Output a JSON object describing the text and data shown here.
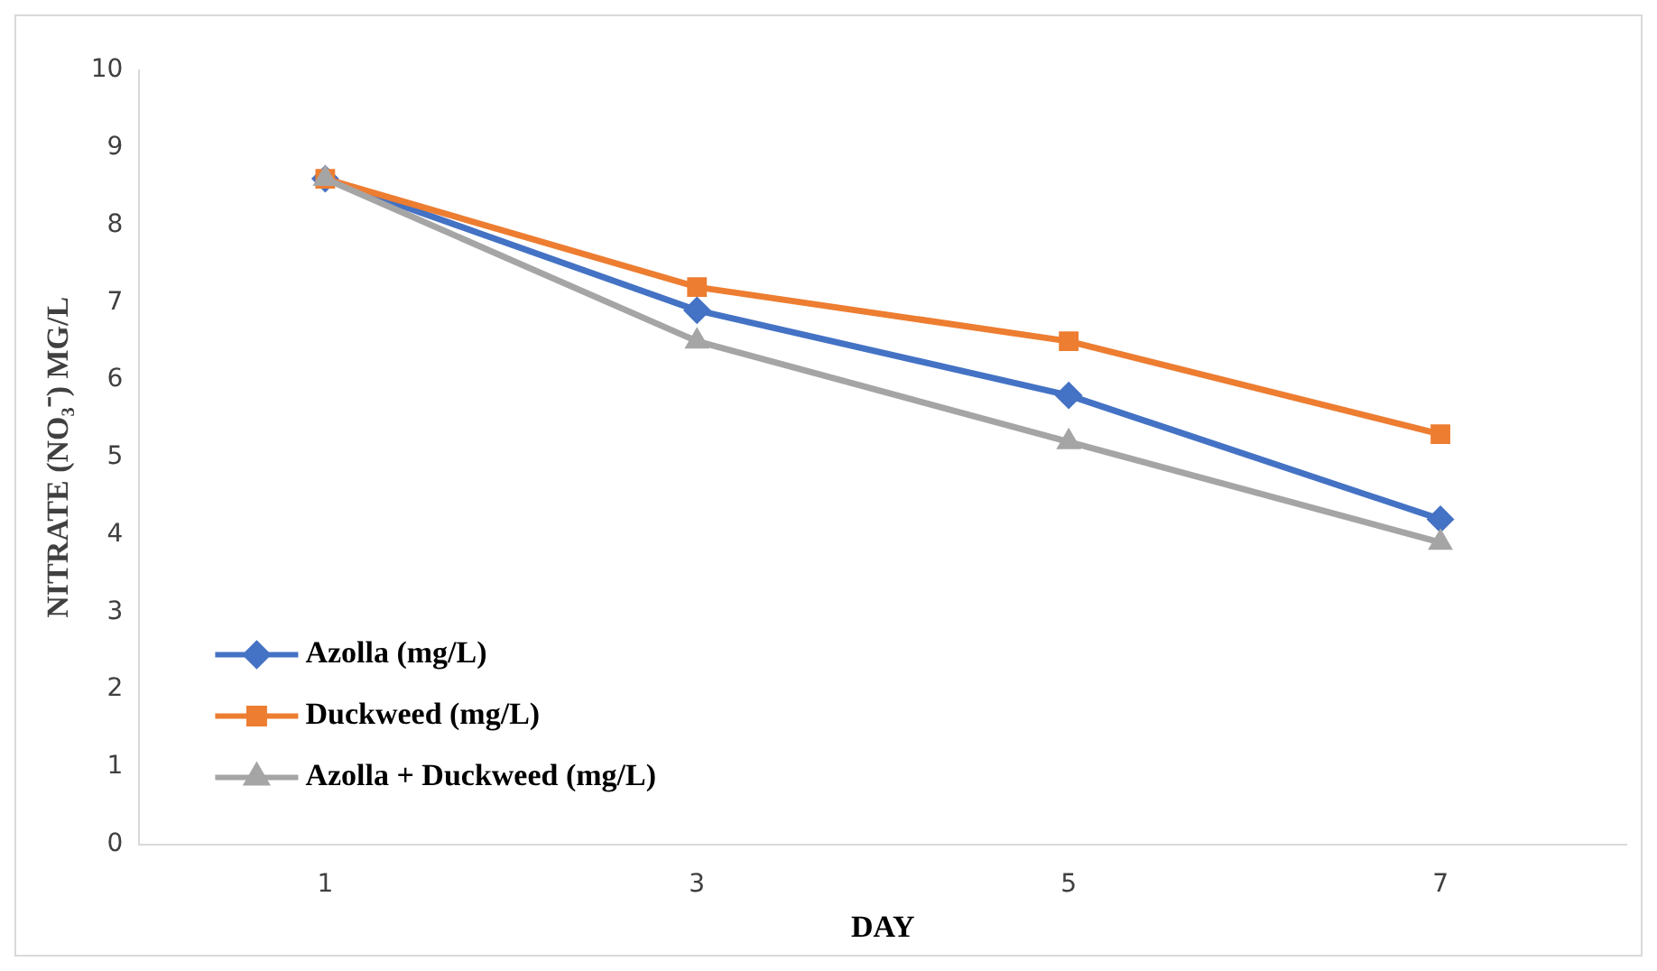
{
  "chart_data": {
    "type": "line",
    "xlabel": "DAY",
    "ylabel": "NITRATE (NO₃⁻) MG/L",
    "categories": [
      "1",
      "3",
      "5",
      "7"
    ],
    "series": [
      {
        "name": "Azolla (mg/L)",
        "color": "#4472c4",
        "marker": "diamond",
        "values": [
          8.6,
          6.9,
          5.8,
          4.2
        ]
      },
      {
        "name": "Duckweed (mg/L)",
        "color": "#ed7d31",
        "marker": "square",
        "values": [
          8.6,
          7.2,
          6.5,
          5.3
        ]
      },
      {
        "name": "Azolla + Duckweed (mg/L)",
        "color": "#a5a5a5",
        "marker": "triangle",
        "values": [
          8.6,
          6.5,
          5.2,
          3.9
        ]
      }
    ],
    "ylim": [
      0,
      10
    ],
    "yticks": [
      0,
      1,
      2,
      3,
      4,
      5,
      6,
      7,
      8,
      9,
      10
    ],
    "grid": false,
    "legend": "bottom left"
  }
}
